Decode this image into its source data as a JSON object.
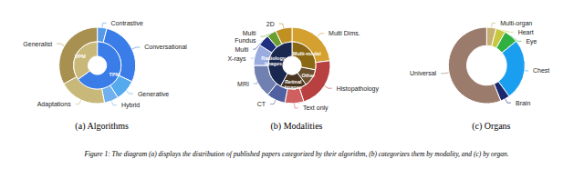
{
  "chart_data": [
    {
      "type": "pie",
      "title": "(a) Algorithms",
      "series": [
        {
          "categories": [
            "Contrastive",
            "Conversational",
            "Generative",
            "Hybrid",
            "Adaptations",
            "Generalist"
          ],
          "values": [
            4,
            28,
            9,
            6,
            20,
            33
          ],
          "colors": [
            "#5599e8",
            "#3a7de8",
            "#55aaee",
            "#70b0ee",
            "#c8b87a",
            "#a89050"
          ]
        },
        {
          "categories": [
            "TPM",
            "VPM"
          ],
          "values": [
            65,
            35
          ],
          "colors": [
            "#3a7de8",
            "#c8b87a"
          ]
        }
      ]
    },
    {
      "type": "pie",
      "title": "(b) Modalities",
      "series": [
        {
          "categories": [
            "Multi Dims.",
            "Histopathology",
            "Text only",
            "CT",
            "MRI",
            "X-rays",
            "Multi",
            "Multi\nFundus",
            "2D"
          ],
          "values": [
            23,
            22,
            8,
            8,
            14,
            9,
            5,
            4,
            7
          ],
          "colors": [
            "#d4a030",
            "#b84040",
            "#d06060",
            "#5060a0",
            "#7080b0",
            "#9aabe0",
            "#203080",
            "#6a9e30",
            "#c09020"
          ]
        },
        {
          "categories": [
            "Multi-modal",
            "Other",
            "Retinal\nImages",
            "Radiology\nImages"
          ],
          "values": [
            28,
            12,
            18,
            42
          ],
          "colors": [
            "#8b6914",
            "#6b5030",
            "#4a3520",
            "#1a2850"
          ]
        }
      ]
    },
    {
      "type": "pie",
      "title": "(c) Organs",
      "series": [
        {
          "categories": [
            "Multi-organ",
            "Heart",
            "Eye",
            "Chest",
            "Brain",
            "Universal"
          ],
          "values": [
            4,
            4,
            6,
            26,
            4,
            56
          ],
          "colors": [
            "#c8b070",
            "#c8c840",
            "#30b040",
            "#1a9ff0",
            "#1a2870",
            "#9b7b6b"
          ]
        }
      ]
    }
  ],
  "caption": "Figure 1: The diagram (a) displays the distribution of published papers categorized by their algorithm, (b) categorizes them by modality, and (c) by organ."
}
